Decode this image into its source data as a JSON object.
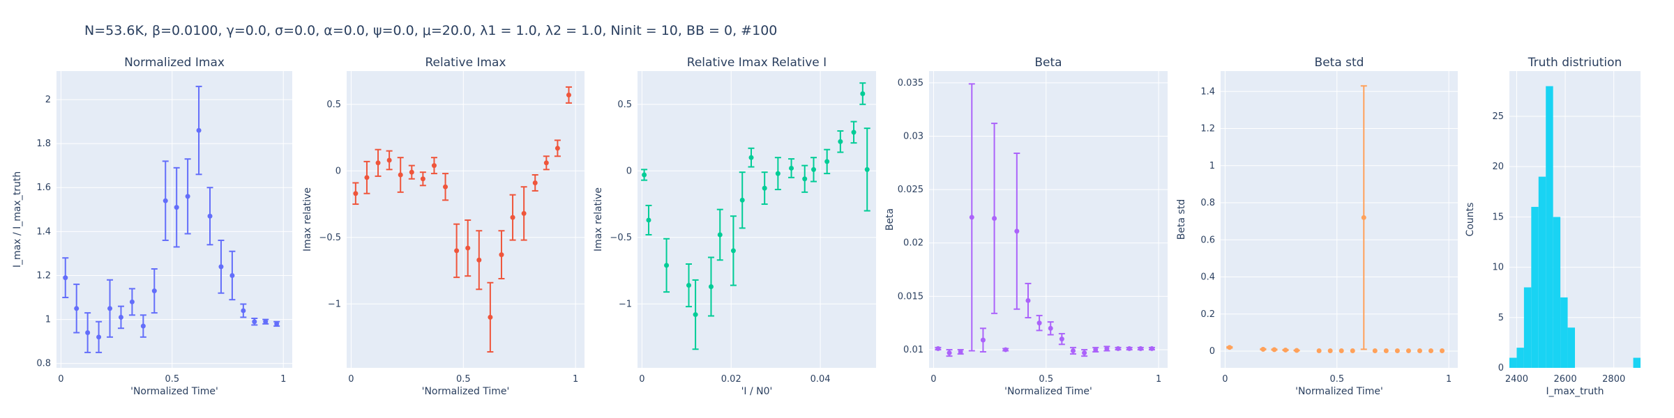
{
  "figure_title": "N=53.6K, β=0.0100, γ=0.0, σ=0.0,  α=0.0, ψ=0.0, μ=20.0, λ1 = 1.0, λ2 = 1.0, Ninit = 10, BB = 0, #100",
  "colors": {
    "plot_bg": "#e5ecf6",
    "grid": "#ffffff",
    "text": "#2a3f5f"
  },
  "chart_data": [
    {
      "type": "scatter",
      "title": "Normalized Imax",
      "xlabel": "'Normalized Time'",
      "ylabel": "I_max / I_max_truth",
      "color": "#636efa",
      "xlim": [
        -0.02,
        1.04
      ],
      "ylim": [
        0.78,
        2.13
      ],
      "xticks": [
        0,
        0.5,
        1
      ],
      "xtick_labels": [
        "0",
        "0.5",
        "1"
      ],
      "yticks": [
        0.8,
        1,
        1.2,
        1.4,
        1.6,
        1.8,
        2
      ],
      "ytick_labels": [
        "0.8",
        "1",
        "1.2",
        "1.4",
        "1.6",
        "1.8",
        "2"
      ],
      "x": [
        0.02,
        0.07,
        0.12,
        0.17,
        0.22,
        0.27,
        0.32,
        0.37,
        0.42,
        0.47,
        0.52,
        0.57,
        0.62,
        0.67,
        0.72,
        0.77,
        0.82,
        0.87,
        0.92,
        0.97
      ],
      "y": [
        1.19,
        1.05,
        0.94,
        0.92,
        1.05,
        1.01,
        1.08,
        0.97,
        1.13,
        1.54,
        1.51,
        1.56,
        1.86,
        1.47,
        1.24,
        1.2,
        1.04,
        0.99,
        0.99,
        0.98
      ],
      "err": [
        0.09,
        0.11,
        0.09,
        0.07,
        0.13,
        0.05,
        0.06,
        0.05,
        0.1,
        0.18,
        0.18,
        0.17,
        0.2,
        0.13,
        0.12,
        0.11,
        0.03,
        0.015,
        0.01,
        0.01
      ]
    },
    {
      "type": "scatter",
      "title": "Relative Imax",
      "xlabel": "'Normalized Time'",
      "ylabel": "Imax relative",
      "color": "#ef553b",
      "xlim": [
        -0.02,
        1.04
      ],
      "ylim": [
        -1.48,
        0.75
      ],
      "xticks": [
        0,
        0.5,
        1
      ],
      "xtick_labels": [
        "0",
        "0.5",
        "1"
      ],
      "yticks": [
        -1,
        -0.5,
        0,
        0.5
      ],
      "ytick_labels": [
        "−1",
        "−0.5",
        "0",
        "0.5"
      ],
      "x": [
        0.02,
        0.07,
        0.12,
        0.17,
        0.22,
        0.27,
        0.32,
        0.37,
        0.42,
        0.47,
        0.52,
        0.57,
        0.62,
        0.67,
        0.72,
        0.77,
        0.82,
        0.87,
        0.92,
        0.97
      ],
      "y": [
        -0.17,
        -0.05,
        0.06,
        0.08,
        -0.03,
        -0.01,
        -0.06,
        0.04,
        -0.12,
        -0.6,
        -0.58,
        -0.67,
        -1.1,
        -0.63,
        -0.35,
        -0.32,
        -0.09,
        0.06,
        0.17,
        0.57
      ],
      "err": [
        0.08,
        0.12,
        0.1,
        0.07,
        0.13,
        0.05,
        0.05,
        0.06,
        0.1,
        0.2,
        0.21,
        0.22,
        0.26,
        0.18,
        0.17,
        0.2,
        0.06,
        0.05,
        0.06,
        0.06
      ]
    },
    {
      "type": "scatter",
      "title": "Relative Imax Relative I",
      "xlabel": "'I / N0'",
      "ylabel": "Imax relative",
      "color": "#00cc96",
      "xlim": [
        -0.001,
        0.0525
      ],
      "ylim": [
        -1.48,
        0.75
      ],
      "xticks": [
        0,
        0.02,
        0.04
      ],
      "xtick_labels": [
        "0",
        "0.02",
        "0.04"
      ],
      "yticks": [
        -1,
        -0.5,
        0,
        0.5
      ],
      "ytick_labels": [
        "−1",
        "−0.5",
        "0",
        "0.5"
      ],
      "x": [
        0.0005,
        0.0015,
        0.0055,
        0.0105,
        0.012,
        0.0155,
        0.0175,
        0.0205,
        0.0225,
        0.0245,
        0.0275,
        0.0305,
        0.0335,
        0.0365,
        0.0385,
        0.0415,
        0.0445,
        0.0475,
        0.0495,
        0.0505
      ],
      "y": [
        -0.03,
        -0.37,
        -0.71,
        -0.86,
        -1.08,
        -0.87,
        -0.48,
        -0.6,
        -0.22,
        0.1,
        -0.13,
        -0.02,
        0.02,
        -0.06,
        0.01,
        0.07,
        0.22,
        0.29,
        0.58,
        0.01
      ],
      "err": [
        0.04,
        0.11,
        0.2,
        0.16,
        0.26,
        0.22,
        0.19,
        0.26,
        0.21,
        0.07,
        0.12,
        0.12,
        0.07,
        0.1,
        0.09,
        0.09,
        0.08,
        0.08,
        0.08,
        0.31
      ]
    },
    {
      "type": "scatter",
      "title": "Beta",
      "xlabel": "'Normalized Time'",
      "ylabel": "Beta",
      "color": "#ab63fa",
      "xlim": [
        -0.02,
        1.04
      ],
      "ylim": [
        0.0083,
        0.0361
      ],
      "xticks": [
        0,
        0.5,
        1
      ],
      "xtick_labels": [
        "0",
        "0.5",
        "1"
      ],
      "yticks": [
        0.01,
        0.015,
        0.02,
        0.025,
        0.03,
        0.035
      ],
      "ytick_labels": [
        "0.01",
        "0.015",
        "0.02",
        "0.025",
        "0.03",
        "0.035"
      ],
      "x": [
        0.02,
        0.07,
        0.12,
        0.17,
        0.22,
        0.27,
        0.32,
        0.37,
        0.42,
        0.47,
        0.52,
        0.57,
        0.62,
        0.67,
        0.72,
        0.77,
        0.82,
        0.87,
        0.92,
        0.97
      ],
      "y": [
        0.0101,
        0.0097,
        0.0098,
        0.0224,
        0.0109,
        0.0223,
        0.01,
        0.0211,
        0.0146,
        0.0125,
        0.012,
        0.011,
        0.0099,
        0.0097,
        0.01,
        0.0101,
        0.0101,
        0.0101,
        0.0101,
        0.0101
      ],
      "err": [
        0.0001,
        0.0003,
        0.0002,
        0.0125,
        0.0011,
        0.0089,
        0.0001,
        0.0073,
        0.0016,
        0.0007,
        0.0006,
        0.0005,
        0.0003,
        0.0003,
        0.0002,
        0.0002,
        0.0001,
        0.0001,
        0.0001,
        0.0001
      ]
    },
    {
      "type": "scatter",
      "title": "Beta std",
      "xlabel": "'Normalized Time'",
      "ylabel": "Beta std",
      "color": "#ffa15a",
      "xlim": [
        -0.02,
        1.04
      ],
      "ylim": [
        -0.09,
        1.51
      ],
      "xticks": [
        0,
        0.5,
        1
      ],
      "xtick_labels": [
        "0",
        "0.5",
        "1"
      ],
      "yticks": [
        0,
        0.2,
        0.4,
        0.6,
        0.8,
        1,
        1.2,
        1.4
      ],
      "ytick_labels": [
        "0",
        "0.2",
        "0.4",
        "0.6",
        "0.8",
        "1",
        "1.2",
        "1.4"
      ],
      "x": [
        0.02,
        0.17,
        0.22,
        0.27,
        0.32,
        0.42,
        0.47,
        0.52,
        0.57,
        0.62,
        0.67,
        0.72,
        0.77,
        0.82,
        0.87,
        0.92,
        0.97
      ],
      "y": [
        0.02,
        0.01,
        0.008,
        0.006,
        0.004,
        0.002,
        0.002,
        0.002,
        0.002,
        0.72,
        0.002,
        0.002,
        0.002,
        0.002,
        0.002,
        0.002,
        0.002
      ],
      "err": [
        0.003,
        0.002,
        0.002,
        0.002,
        0.001,
        0,
        0,
        0,
        0,
        0.71,
        0,
        0,
        0,
        0,
        0,
        0,
        0
      ]
    },
    {
      "type": "bar",
      "title": "Truth distriution",
      "xlabel": "I_max_truth",
      "ylabel": "Counts",
      "color": "#19d3f3",
      "xlim": [
        2370,
        2910
      ],
      "ylim": [
        0,
        29.5
      ],
      "xticks": [
        2400,
        2600,
        2800
      ],
      "xtick_labels": [
        "2400",
        "2600",
        "2800"
      ],
      "yticks": [
        0,
        5,
        10,
        15,
        20,
        25
      ],
      "ytick_labels": [
        "0",
        "5",
        "10",
        "15",
        "20",
        "25"
      ],
      "bin_start": 2370,
      "bin_width": 30,
      "values": [
        1,
        2,
        8,
        16,
        19,
        28,
        15,
        7,
        4,
        0,
        0,
        0,
        0,
        0,
        0,
        0,
        0,
        1
      ]
    }
  ]
}
